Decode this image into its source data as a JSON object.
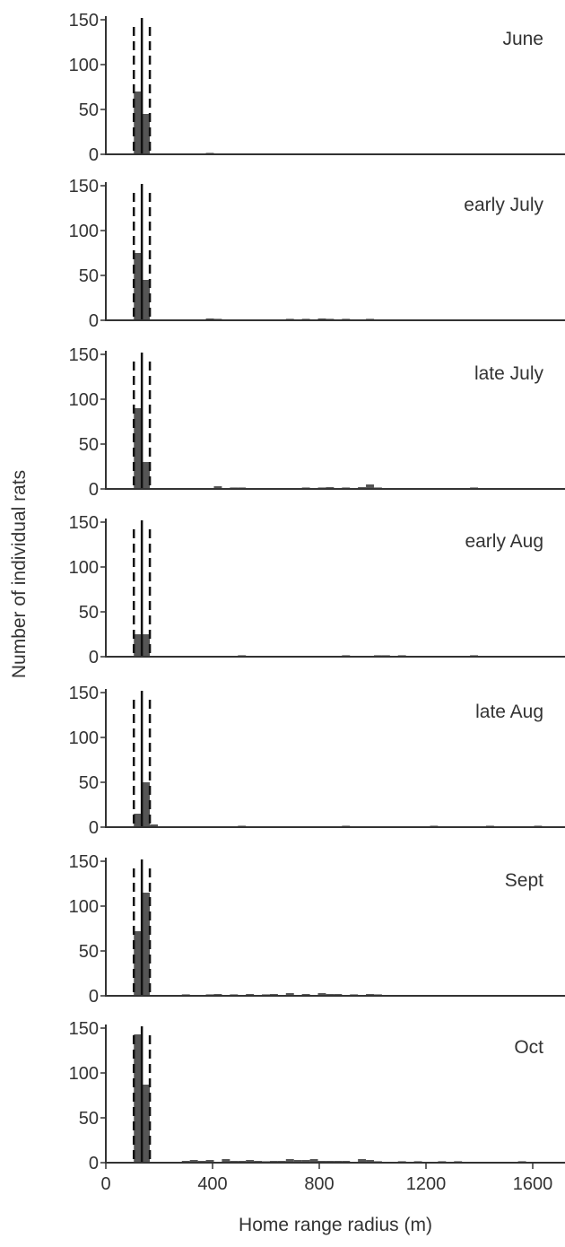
{
  "chart_data": {
    "type": "bar",
    "xlabel": "Home range radius (m)",
    "ylabel": "Number of individual rats",
    "xlim": [
      0,
      1700
    ],
    "ylim": [
      0,
      150
    ],
    "x_ticks": [
      "0",
      "400",
      "800",
      "1200",
      "1600"
    ],
    "y_ticks": [
      "0",
      "50",
      "100",
      "150"
    ],
    "bin_width": 30,
    "median_line": 135,
    "quantile_lines": [
      105,
      165
    ],
    "grid": false,
    "colors": {
      "bars": "#555555",
      "lines": "#111111",
      "axes": "#333333"
    },
    "panels": [
      {
        "label": "June",
        "bars": [
          {
            "x": 120,
            "v": 70
          },
          {
            "x": 150,
            "v": 45
          },
          {
            "x": 390,
            "v": 1
          }
        ]
      },
      {
        "label": "early July",
        "bars": [
          {
            "x": 120,
            "v": 75
          },
          {
            "x": 150,
            "v": 45
          },
          {
            "x": 390,
            "v": 2
          },
          {
            "x": 420,
            "v": 1
          },
          {
            "x": 690,
            "v": 1
          },
          {
            "x": 750,
            "v": 1
          },
          {
            "x": 810,
            "v": 2
          },
          {
            "x": 840,
            "v": 1
          },
          {
            "x": 900,
            "v": 1
          },
          {
            "x": 990,
            "v": 1
          }
        ]
      },
      {
        "label": "late July",
        "bars": [
          {
            "x": 120,
            "v": 90
          },
          {
            "x": 150,
            "v": 30
          },
          {
            "x": 420,
            "v": 3
          },
          {
            "x": 480,
            "v": 1
          },
          {
            "x": 510,
            "v": 1
          },
          {
            "x": 750,
            "v": 1
          },
          {
            "x": 810,
            "v": 1
          },
          {
            "x": 840,
            "v": 2
          },
          {
            "x": 900,
            "v": 1
          },
          {
            "x": 960,
            "v": 2
          },
          {
            "x": 990,
            "v": 5
          },
          {
            "x": 1020,
            "v": 1
          },
          {
            "x": 1380,
            "v": 1
          }
        ]
      },
      {
        "label": "early Aug",
        "bars": [
          {
            "x": 120,
            "v": 25
          },
          {
            "x": 150,
            "v": 25
          },
          {
            "x": 510,
            "v": 1
          },
          {
            "x": 900,
            "v": 1
          },
          {
            "x": 1020,
            "v": 1
          },
          {
            "x": 1050,
            "v": 1
          },
          {
            "x": 1110,
            "v": 1
          },
          {
            "x": 1380,
            "v": 1
          }
        ]
      },
      {
        "label": "late Aug",
        "bars": [
          {
            "x": 120,
            "v": 15
          },
          {
            "x": 150,
            "v": 50
          },
          {
            "x": 180,
            "v": 3
          },
          {
            "x": 510,
            "v": 1
          },
          {
            "x": 900,
            "v": 1
          },
          {
            "x": 1230,
            "v": 1
          },
          {
            "x": 1440,
            "v": 1
          },
          {
            "x": 1620,
            "v": 1
          }
        ]
      },
      {
        "label": "Sept",
        "bars": [
          {
            "x": 120,
            "v": 72
          },
          {
            "x": 150,
            "v": 115
          },
          {
            "x": 300,
            "v": 1
          },
          {
            "x": 390,
            "v": 1
          },
          {
            "x": 420,
            "v": 2
          },
          {
            "x": 480,
            "v": 1
          },
          {
            "x": 540,
            "v": 2
          },
          {
            "x": 600,
            "v": 1
          },
          {
            "x": 630,
            "v": 2
          },
          {
            "x": 690,
            "v": 3
          },
          {
            "x": 750,
            "v": 2
          },
          {
            "x": 810,
            "v": 3
          },
          {
            "x": 840,
            "v": 2
          },
          {
            "x": 870,
            "v": 2
          },
          {
            "x": 930,
            "v": 1
          },
          {
            "x": 990,
            "v": 2
          },
          {
            "x": 1020,
            "v": 1
          }
        ]
      },
      {
        "label": "Oct",
        "bars": [
          {
            "x": 120,
            "v": 143
          },
          {
            "x": 150,
            "v": 87
          },
          {
            "x": 300,
            "v": 2
          },
          {
            "x": 330,
            "v": 3
          },
          {
            "x": 360,
            "v": 2
          },
          {
            "x": 390,
            "v": 3
          },
          {
            "x": 450,
            "v": 4
          },
          {
            "x": 480,
            "v": 2
          },
          {
            "x": 510,
            "v": 2
          },
          {
            "x": 540,
            "v": 3
          },
          {
            "x": 570,
            "v": 2
          },
          {
            "x": 600,
            "v": 1
          },
          {
            "x": 630,
            "v": 2
          },
          {
            "x": 660,
            "v": 2
          },
          {
            "x": 690,
            "v": 4
          },
          {
            "x": 720,
            "v": 3
          },
          {
            "x": 750,
            "v": 3
          },
          {
            "x": 780,
            "v": 4
          },
          {
            "x": 810,
            "v": 2
          },
          {
            "x": 840,
            "v": 2
          },
          {
            "x": 870,
            "v": 2
          },
          {
            "x": 900,
            "v": 2
          },
          {
            "x": 960,
            "v": 4
          },
          {
            "x": 990,
            "v": 3
          },
          {
            "x": 1020,
            "v": 1
          },
          {
            "x": 1110,
            "v": 1
          },
          {
            "x": 1170,
            "v": 1
          },
          {
            "x": 1260,
            "v": 1
          },
          {
            "x": 1320,
            "v": 1
          },
          {
            "x": 1560,
            "v": 1
          }
        ]
      }
    ]
  }
}
